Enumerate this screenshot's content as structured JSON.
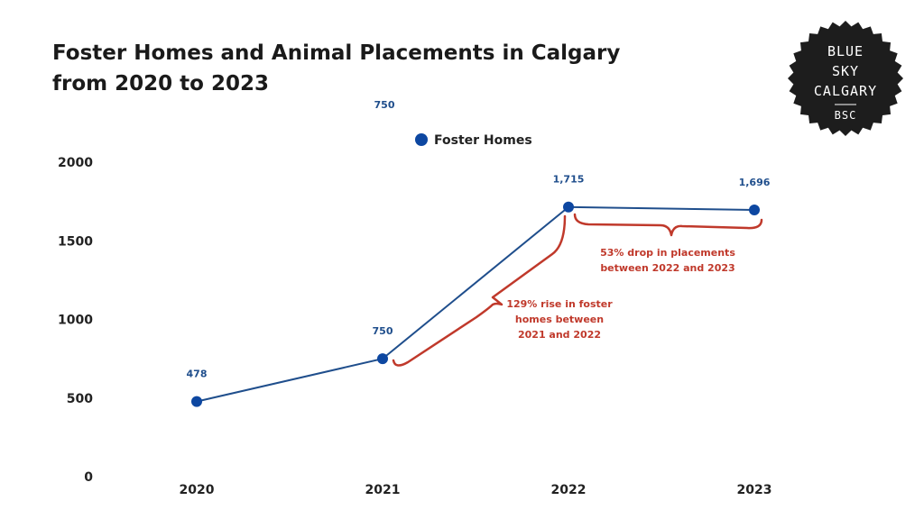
{
  "title_lines": [
    "Foster Homes and Animal Placements in Calgary",
    "from 2020 to 2023"
  ],
  "stray_label": "750",
  "legend": {
    "label": "Foster Homes",
    "placement": "top-center"
  },
  "colors": {
    "series": "#0d47a1",
    "line": "#1f4e8c",
    "annotation": "#c0392b",
    "text": "#222222"
  },
  "logo": {
    "lines": [
      "BLUE",
      "SKY",
      "CALGARY",
      "BSC"
    ],
    "icon": "badge-icon"
  },
  "chart_data": {
    "type": "line",
    "title": "Foster Homes and Animal Placements in Calgary from 2020 to 2023",
    "x": [
      "2020",
      "2021",
      "2022",
      "2023"
    ],
    "y_ticks": [
      "0",
      "500",
      "1000",
      "1500",
      "2000"
    ],
    "ylim": [
      0,
      2000
    ],
    "grid": false,
    "series": [
      {
        "name": "Foster Homes",
        "values": [
          478,
          750,
          1715,
          1696
        ],
        "labels": [
          "478",
          "750",
          "1,715",
          "1,696"
        ]
      }
    ],
    "annotations": [
      {
        "lines": [
          "129% rise in foster",
          "homes between",
          "2021 and 2022"
        ]
      },
      {
        "lines": [
          "53% drop in placements",
          "between 2022 and 2023"
        ]
      }
    ]
  }
}
